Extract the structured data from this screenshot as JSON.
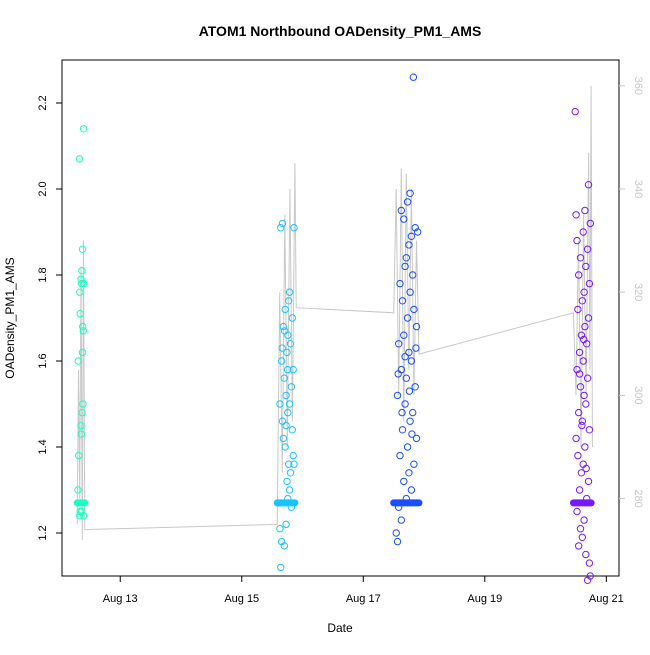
{
  "chart_data": {
    "type": "scatter",
    "title": "ATOM1 Northbound OADensity_PM1_AMS",
    "xlabel": "Date",
    "ylabel": "OADensity_PM1_AMS",
    "x_axis": {
      "type": "date",
      "range": [
        "2016-08-12 01:00",
        "2016-08-21 05:00"
      ],
      "ticks": [
        "Aug 13",
        "Aug 15",
        "Aug 17",
        "Aug 19",
        "Aug 21"
      ],
      "tick_values": [
        "2016-08-13",
        "2016-08-15",
        "2016-08-17",
        "2016-08-19",
        "2016-08-21"
      ]
    },
    "y_axis_left": {
      "range": [
        1.1,
        2.3
      ],
      "ticks": [
        "1.2",
        "1.4",
        "1.6",
        "1.8",
        "2.0",
        "2.2"
      ],
      "tick_values": [
        1.2,
        1.4,
        1.6,
        1.8,
        2.0,
        2.2
      ]
    },
    "y_axis_right": {
      "range": [
        265,
        365
      ],
      "ticks": [
        "280",
        "300",
        "320",
        "340",
        "360"
      ],
      "tick_values": [
        280,
        300,
        320,
        340,
        360
      ],
      "color": "#c8c8c8"
    },
    "grid": false,
    "legend": "none",
    "series": [
      {
        "x_range": [
          "2016-08-12 07:00",
          "2016-08-12 10:00"
        ],
        "color": "#19ffbd",
        "marker": "open-circle",
        "baseline": 1.27,
        "points": [
          [
            0.1,
            1.3
          ],
          [
            0.85,
            1.24
          ],
          [
            0.3,
            1.24
          ],
          [
            0.4,
            1.25
          ],
          [
            0.6,
            1.25
          ],
          [
            0.2,
            1.38
          ],
          [
            0.55,
            1.43
          ],
          [
            0.5,
            1.45
          ],
          [
            0.65,
            1.48
          ],
          [
            0.75,
            1.5
          ],
          [
            0.15,
            1.6
          ],
          [
            0.7,
            1.62
          ],
          [
            0.8,
            1.67
          ],
          [
            0.72,
            1.68
          ],
          [
            0.4,
            1.71
          ],
          [
            0.35,
            1.76
          ],
          [
            0.6,
            1.78
          ],
          [
            0.85,
            1.78
          ],
          [
            0.5,
            1.79
          ],
          [
            0.62,
            1.81
          ],
          [
            0.7,
            1.86
          ],
          [
            0.3,
            2.07
          ],
          [
            0.85,
            2.14
          ]
        ]
      },
      {
        "x_range": [
          "2016-08-15 14:00",
          "2016-08-15 21:00"
        ],
        "color": "#19c3ff",
        "marker": "open-circle",
        "baseline": 1.27,
        "points": [
          [
            0.2,
            1.12
          ],
          [
            0.25,
            1.18
          ],
          [
            0.4,
            1.17
          ],
          [
            0.15,
            1.21
          ],
          [
            0.5,
            1.22
          ],
          [
            0.8,
            1.26
          ],
          [
            0.6,
            1.28
          ],
          [
            0.7,
            1.3
          ],
          [
            0.55,
            1.32
          ],
          [
            0.75,
            1.34
          ],
          [
            0.65,
            1.36
          ],
          [
            0.9,
            1.38
          ],
          [
            0.45,
            1.4
          ],
          [
            0.35,
            1.42
          ],
          [
            0.85,
            1.44
          ],
          [
            0.3,
            1.46
          ],
          [
            0.6,
            1.48
          ],
          [
            0.7,
            1.5
          ],
          [
            0.5,
            1.52
          ],
          [
            0.8,
            1.54
          ],
          [
            0.4,
            1.56
          ],
          [
            0.9,
            1.58
          ],
          [
            0.25,
            1.6
          ],
          [
            0.55,
            1.62
          ],
          [
            0.75,
            1.64
          ],
          [
            0.6,
            1.66
          ],
          [
            0.35,
            1.68
          ],
          [
            0.85,
            1.7
          ],
          [
            0.45,
            1.72
          ],
          [
            0.65,
            1.74
          ],
          [
            0.7,
            1.76
          ],
          [
            0.15,
            1.5
          ],
          [
            0.28,
            1.63
          ],
          [
            0.5,
            1.45
          ],
          [
            0.95,
            1.36
          ],
          [
            0.58,
            1.58
          ],
          [
            0.2,
            1.91
          ],
          [
            0.3,
            1.92
          ],
          [
            0.95,
            1.91
          ],
          [
            0.42,
            1.67
          ]
        ]
      },
      {
        "x_range": [
          "2016-08-17 12:00",
          "2016-08-17 22:00"
        ],
        "color": "#1a4eff",
        "marker": "open-circle",
        "baseline": 1.27,
        "points": [
          [
            0.1,
            1.2
          ],
          [
            0.15,
            1.18
          ],
          [
            0.3,
            1.23
          ],
          [
            0.2,
            1.26
          ],
          [
            0.5,
            1.28
          ],
          [
            0.7,
            1.3
          ],
          [
            0.4,
            1.32
          ],
          [
            0.6,
            1.34
          ],
          [
            0.8,
            1.36
          ],
          [
            0.25,
            1.38
          ],
          [
            0.55,
            1.4
          ],
          [
            0.9,
            1.42
          ],
          [
            0.35,
            1.44
          ],
          [
            0.65,
            1.46
          ],
          [
            0.75,
            1.48
          ],
          [
            0.45,
            1.5
          ],
          [
            0.15,
            1.52
          ],
          [
            0.85,
            1.54
          ],
          [
            0.5,
            1.56
          ],
          [
            0.3,
            1.58
          ],
          [
            0.7,
            1.6
          ],
          [
            0.6,
            1.62
          ],
          [
            0.2,
            1.64
          ],
          [
            0.4,
            1.66
          ],
          [
            0.9,
            1.68
          ],
          [
            0.55,
            1.7
          ],
          [
            0.8,
            1.72
          ],
          [
            0.35,
            1.74
          ],
          [
            0.65,
            1.76
          ],
          [
            0.25,
            1.78
          ],
          [
            0.75,
            1.8
          ],
          [
            0.45,
            1.82
          ],
          [
            0.5,
            1.84
          ],
          [
            0.6,
            1.87
          ],
          [
            0.7,
            1.89
          ],
          [
            0.85,
            1.91
          ],
          [
            0.4,
            1.93
          ],
          [
            0.3,
            1.95
          ],
          [
            0.55,
            1.97
          ],
          [
            0.65,
            1.99
          ],
          [
            0.45,
            1.61
          ],
          [
            0.18,
            1.57
          ],
          [
            0.62,
            1.53
          ],
          [
            0.88,
            1.63
          ],
          [
            0.33,
            1.48
          ],
          [
            0.72,
            1.43
          ],
          [
            0.95,
            1.9
          ],
          [
            0.78,
            2.26
          ]
        ]
      },
      {
        "x_range": [
          "2016-08-20 11:00",
          "2016-08-20 18:00"
        ],
        "color": "#761aff",
        "marker": "open-circle",
        "baseline": 1.27,
        "points": [
          [
            0.8,
            1.09
          ],
          [
            0.95,
            1.1
          ],
          [
            0.9,
            1.13
          ],
          [
            0.7,
            1.15
          ],
          [
            0.3,
            1.17
          ],
          [
            0.5,
            1.19
          ],
          [
            0.4,
            1.21
          ],
          [
            0.6,
            1.23
          ],
          [
            0.2,
            1.25
          ],
          [
            0.75,
            1.28
          ],
          [
            0.35,
            1.3
          ],
          [
            0.85,
            1.32
          ],
          [
            0.45,
            1.34
          ],
          [
            0.55,
            1.36
          ],
          [
            0.25,
            1.38
          ],
          [
            0.65,
            1.4
          ],
          [
            0.15,
            1.42
          ],
          [
            0.9,
            1.44
          ],
          [
            0.5,
            1.46
          ],
          [
            0.3,
            1.48
          ],
          [
            0.7,
            1.5
          ],
          [
            0.6,
            1.52
          ],
          [
            0.4,
            1.54
          ],
          [
            0.8,
            1.56
          ],
          [
            0.2,
            1.58
          ],
          [
            0.55,
            1.6
          ],
          [
            0.35,
            1.62
          ],
          [
            0.75,
            1.64
          ],
          [
            0.45,
            1.66
          ],
          [
            0.65,
            1.68
          ],
          [
            0.85,
            1.7
          ],
          [
            0.25,
            1.72
          ],
          [
            0.5,
            1.74
          ],
          [
            0.6,
            1.76
          ],
          [
            0.9,
            1.78
          ],
          [
            0.3,
            1.8
          ],
          [
            0.7,
            1.82
          ],
          [
            0.4,
            1.84
          ],
          [
            0.8,
            1.86
          ],
          [
            0.2,
            1.88
          ],
          [
            0.55,
            1.9
          ],
          [
            0.95,
            1.92
          ],
          [
            0.15,
            1.94
          ],
          [
            0.65,
            1.95
          ],
          [
            0.85,
            2.01
          ],
          [
            0.1,
            2.18
          ],
          [
            0.35,
            1.57
          ],
          [
            0.48,
            1.45
          ],
          [
            0.72,
            1.35
          ],
          [
            0.58,
            1.65
          ]
        ]
      }
    ],
    "secondary_line": {
      "axis": "right",
      "color": "#c8c8c8",
      "points": [
        [
          "2016-08-12 07:00",
          275
        ],
        [
          "2016-08-12 07:30",
          305
        ],
        [
          "2016-08-12 08:00",
          280
        ],
        [
          "2016-08-12 08:30",
          325
        ],
        [
          "2016-08-12 09:00",
          272
        ],
        [
          "2016-08-12 09:30",
          330
        ],
        [
          "2016-08-12 10:00",
          274
        ],
        [
          "2016-08-15 14:00",
          275
        ],
        [
          "2016-08-15 15:00",
          320
        ],
        [
          "2016-08-15 16:00",
          285
        ],
        [
          "2016-08-15 17:00",
          335
        ],
        [
          "2016-08-15 18:00",
          290
        ],
        [
          "2016-08-15 19:00",
          340
        ],
        [
          "2016-08-15 20:00",
          295
        ],
        [
          "2016-08-15 21:00",
          345
        ],
        [
          "2016-08-15 21:30",
          317
        ],
        [
          "2016-08-17 12:00",
          316
        ],
        [
          "2016-08-17 13:00",
          340
        ],
        [
          "2016-08-17 14:00",
          300
        ],
        [
          "2016-08-17 15:00",
          344
        ],
        [
          "2016-08-17 16:00",
          295
        ],
        [
          "2016-08-17 17:00",
          343
        ],
        [
          "2016-08-17 18:00",
          305
        ],
        [
          "2016-08-17 19:00",
          340
        ],
        [
          "2016-08-17 20:00",
          300
        ],
        [
          "2016-08-17 21:00",
          330
        ],
        [
          "2016-08-17 22:00",
          308
        ],
        [
          "2016-08-20 11:00",
          316
        ],
        [
          "2016-08-20 12:00",
          300
        ],
        [
          "2016-08-20 13:00",
          330
        ],
        [
          "2016-08-20 14:00",
          290
        ],
        [
          "2016-08-20 15:00",
          335
        ],
        [
          "2016-08-20 16:00",
          300
        ],
        [
          "2016-08-20 17:00",
          347
        ],
        [
          "2016-08-20 17:30",
          305
        ],
        [
          "2016-08-20 18:00",
          360
        ],
        [
          "2016-08-20 18:30",
          290
        ]
      ]
    }
  }
}
